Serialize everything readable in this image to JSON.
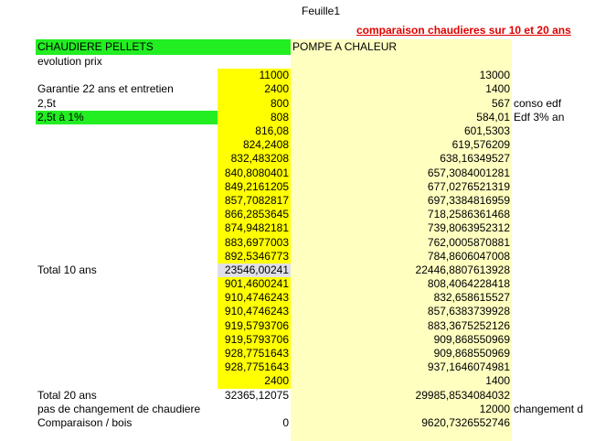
{
  "sheet_title": "Feuille1",
  "subtitle": "comparaison chaudieres sur 10 et 20 ans",
  "colors": {
    "green": "#22ee22",
    "yellow": "#ffff00",
    "pale_yellow": "#ffffc0",
    "title_red": "#e00000"
  },
  "header": {
    "a": "CHAUDIERE PELLETS",
    "c": "POMPE A CHALEUR"
  },
  "rows": [
    {
      "a": "evolution prix",
      "b": "",
      "c": "",
      "d": ""
    },
    {
      "a": "",
      "b": "11000",
      "c": "13000",
      "d": ""
    },
    {
      "a": "Garantie 22 ans et entretien",
      "b": "2400",
      "c": "1400",
      "d": ""
    },
    {
      "a": "2,5t",
      "b": "800",
      "c": "567",
      "d": "conso edf"
    },
    {
      "a": "2,5t à 1%",
      "b": "808",
      "c": "584,01",
      "d": "Edf 3% an"
    },
    {
      "a": "",
      "b": "816,08",
      "c": "601,5303",
      "d": ""
    },
    {
      "a": "",
      "b": "824,2408",
      "c": "619,576209",
      "d": ""
    },
    {
      "a": "",
      "b": "832,483208",
      "c": "638,16349527",
      "d": ""
    },
    {
      "a": "",
      "b": "840,8080401",
      "c": "657,3084001281",
      "d": ""
    },
    {
      "a": "",
      "b": "849,2161205",
      "c": "677,0276521319",
      "d": ""
    },
    {
      "a": "",
      "b": "857,7082817",
      "c": "697,3384816959",
      "d": ""
    },
    {
      "a": "",
      "b": "866,2853645",
      "c": "718,2586361468",
      "d": ""
    },
    {
      "a": "",
      "b": "874,9482181",
      "c": "739,8063952312",
      "d": ""
    },
    {
      "a": "",
      "b": "883,6977003",
      "c": "762,0005870881",
      "d": ""
    },
    {
      "a": "",
      "b": "892,5346773",
      "c": "784,8606047008",
      "d": ""
    },
    {
      "a": "Total 10 ans",
      "b": "23546,00241",
      "c": "22446,8807613928",
      "d": ""
    },
    {
      "a": "",
      "b": "901,4600241",
      "c": "808,4064228418",
      "d": ""
    },
    {
      "a": "",
      "b": "910,4746243",
      "c": "832,658615527",
      "d": ""
    },
    {
      "a": "",
      "b": "910,4746243",
      "c": "857,6383739928",
      "d": ""
    },
    {
      "a": "",
      "b": "919,5793706",
      "c": "883,3675252126",
      "d": ""
    },
    {
      "a": "",
      "b": "919,5793706",
      "c": "909,868550969",
      "d": ""
    },
    {
      "a": "",
      "b": "928,7751643",
      "c": "909,868550969",
      "d": ""
    },
    {
      "a": "",
      "b": "928,7751643",
      "c": "937,1646074981",
      "d": ""
    },
    {
      "a": "",
      "b": "2400",
      "c": "1400",
      "d": ""
    },
    {
      "a": "Total 20 ans",
      "b": "32365,12075",
      "c": "29985,8534084032",
      "d": ""
    },
    {
      "a": "pas de changement de chaudiere",
      "b": "",
      "c": "12000",
      "d": "changement d"
    },
    {
      "a": "Comparaison / bois",
      "b": "0",
      "c": "9620,7326552746",
      "d": ""
    }
  ]
}
